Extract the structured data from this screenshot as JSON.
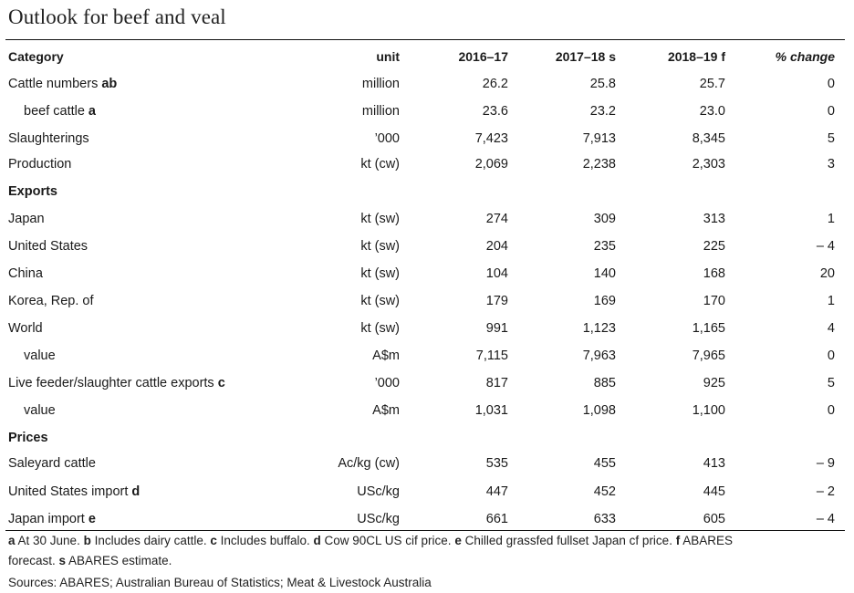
{
  "title": "Outlook for beef and veal",
  "header": {
    "category": "Category",
    "unit": "unit",
    "y1": "2016–17",
    "y2": "2017–18 s",
    "y3": "2018–19 f",
    "change": "% change"
  },
  "rows": [
    {
      "label": "Cattle numbers",
      "note": "ab",
      "unit": "million",
      "v1": "26.2",
      "v2": "25.8",
      "v3": "25.7",
      "pc": "0"
    },
    {
      "label": "beef cattle",
      "note": "a",
      "unit": "million",
      "v1": "23.6",
      "v2": "23.2",
      "v3": "23.0",
      "pc": "0"
    },
    {
      "label": "Slaughterings",
      "note": "",
      "unit": "’000",
      "v1": "7,423",
      "v2": "7,913",
      "v3": "8,345",
      "pc": "5"
    },
    {
      "label": "Production",
      "note": "",
      "unit": "kt (cw)",
      "v1": "2,069",
      "v2": "2,238",
      "v3": "2,303",
      "pc": "3"
    },
    {
      "section": "Exports"
    },
    {
      "label": "Japan",
      "note": "",
      "unit": "kt (sw)",
      "v1": "274",
      "v2": "309",
      "v3": "313",
      "pc": "1"
    },
    {
      "label": "United States",
      "note": "",
      "unit": "kt (sw)",
      "v1": "204",
      "v2": "235",
      "v3": "225",
      "pc": "– 4"
    },
    {
      "label": "China",
      "note": "",
      "unit": "kt (sw)",
      "v1": "104",
      "v2": "140",
      "v3": "168",
      "pc": "20"
    },
    {
      "label": "Korea, Rep. of",
      "note": "",
      "unit": "kt (sw)",
      "v1": "179",
      "v2": "169",
      "v3": "170",
      "pc": "1"
    },
    {
      "label": "World",
      "note": "",
      "unit": "kt (sw)",
      "v1": "991",
      "v2": "1,123",
      "v3": "1,165",
      "pc": "4"
    },
    {
      "label": "value",
      "note": "",
      "unit": "A$m",
      "v1": "7,115",
      "v2": "7,963",
      "v3": "7,965",
      "pc": "0"
    },
    {
      "label": "Live feeder/slaughter cattle exports",
      "note": "c",
      "unit": "’000",
      "v1": "817",
      "v2": "885",
      "v3": "925",
      "pc": "5"
    },
    {
      "label": "value",
      "note": "",
      "unit": "A$m",
      "v1": "1,031",
      "v2": "1,098",
      "v3": "1,100",
      "pc": "0"
    },
    {
      "section": "Prices"
    },
    {
      "label": "Saleyard cattle",
      "note": "",
      "unit": "Ac/kg (cw)",
      "v1": "535",
      "v2": "455",
      "v3": "413",
      "pc": "– 9"
    },
    {
      "label": "United States import",
      "note": "d",
      "unit": "USc/kg",
      "v1": "447",
      "v2": "452",
      "v3": "445",
      "pc": "– 2"
    },
    {
      "label": "Japan import",
      "note": "e",
      "unit": "USc/kg",
      "v1": "661",
      "v2": "633",
      "v3": "605",
      "pc": "– 4"
    }
  ],
  "footnotes": {
    "a_key": "a",
    "a_text": " At 30 June. ",
    "b_key": "b",
    "b_text": " Includes dairy cattle. ",
    "c_key": "c",
    "c_text": " Includes buffalo. ",
    "d_key": "d",
    "d_text": " Cow 90CL US cif price. ",
    "e_key": "e",
    "e_text": " Chilled grassfed fullset Japan cf price. ",
    "f_key": "f",
    "f_text": " ABARES",
    "f_text2": "forecast. ",
    "s_key": "s",
    "s_text": " ABARES estimate.",
    "sources": "Sources: ABARES; Australian Bureau of Statistics; Meat & Livestock Australia"
  }
}
